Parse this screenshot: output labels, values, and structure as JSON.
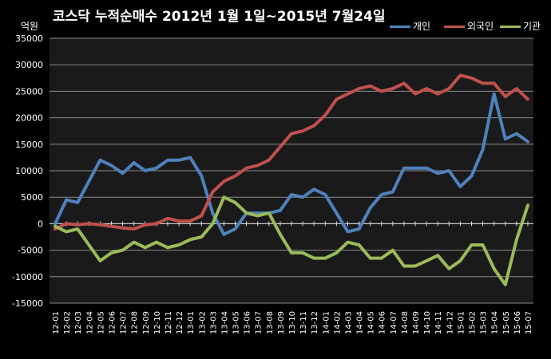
{
  "chart_data": {
    "type": "line",
    "title": "코스닥 누적순매수 2012년 1월 1일~2015년 7월24일",
    "ylabel": "억원",
    "ylim": [
      -15000,
      35000
    ],
    "yticks": [
      -15000,
      -10000,
      -5000,
      0,
      5000,
      10000,
      15000,
      20000,
      25000,
      30000,
      35000
    ],
    "grid": true,
    "legend_position": "top-right",
    "categories": [
      "12-01",
      "12-02",
      "12-03",
      "12-04",
      "12-05",
      "12-06",
      "12-07",
      "12-08",
      "12-09",
      "12-10",
      "12-11",
      "12-12",
      "13-01",
      "13-02",
      "13-03",
      "13-04",
      "13-05",
      "13-06",
      "13-07",
      "13-08",
      "13-09",
      "13-10",
      "13-11",
      "13-12",
      "14-01",
      "14-02",
      "14-03",
      "14-04",
      "14-05",
      "14-06",
      "14-07",
      "14-08",
      "14-09",
      "14-10",
      "14-11",
      "14-12",
      "15-01",
      "15-02",
      "15-03",
      "15-04",
      "15-05",
      "15-06",
      "15-07"
    ],
    "series": [
      {
        "name": "개인",
        "color": "#4f81bd",
        "values": [
          0,
          4500,
          4000,
          8000,
          12000,
          11000,
          9500,
          11500,
          10000,
          10500,
          12000,
          12000,
          12500,
          9000,
          2000,
          -2000,
          -1000,
          2000,
          2000,
          2000,
          2500,
          5500,
          5000,
          6500,
          5500,
          2000,
          -1500,
          -1000,
          3000,
          5500,
          6000,
          10500,
          10500,
          10500,
          9500,
          10000,
          7000,
          9000,
          14000,
          24500,
          16000,
          17000,
          15500
        ]
      },
      {
        "name": "외국인",
        "color": "#c0504d",
        "values": [
          -1000,
          0,
          -200,
          0,
          -200,
          -500,
          -800,
          -1000,
          -200,
          0,
          1000,
          500,
          500,
          1500,
          6000,
          8000,
          9000,
          10500,
          11000,
          12000,
          14500,
          17000,
          17500,
          18500,
          20500,
          23500,
          24500,
          25500,
          26000,
          25000,
          25500,
          26500,
          24500,
          25500,
          24500,
          25500,
          28000,
          27500,
          26500,
          26500,
          24000,
          25500,
          23500
        ]
      },
      {
        "name": "기관",
        "color": "#9bbb59",
        "values": [
          -500,
          -1500,
          -1000,
          -4000,
          -7000,
          -5500,
          -5000,
          -3500,
          -4500,
          -3500,
          -4500,
          -4000,
          -3000,
          -2500,
          0,
          5000,
          4000,
          2000,
          1500,
          2000,
          -2000,
          -5500,
          -5500,
          -6500,
          -6500,
          -5500,
          -3500,
          -4000,
          -6500,
          -6500,
          -5000,
          -8000,
          -8000,
          -7000,
          -6000,
          -8500,
          -7000,
          -4000,
          -4000,
          -8500,
          -11500,
          -3000,
          3500
        ]
      }
    ]
  }
}
